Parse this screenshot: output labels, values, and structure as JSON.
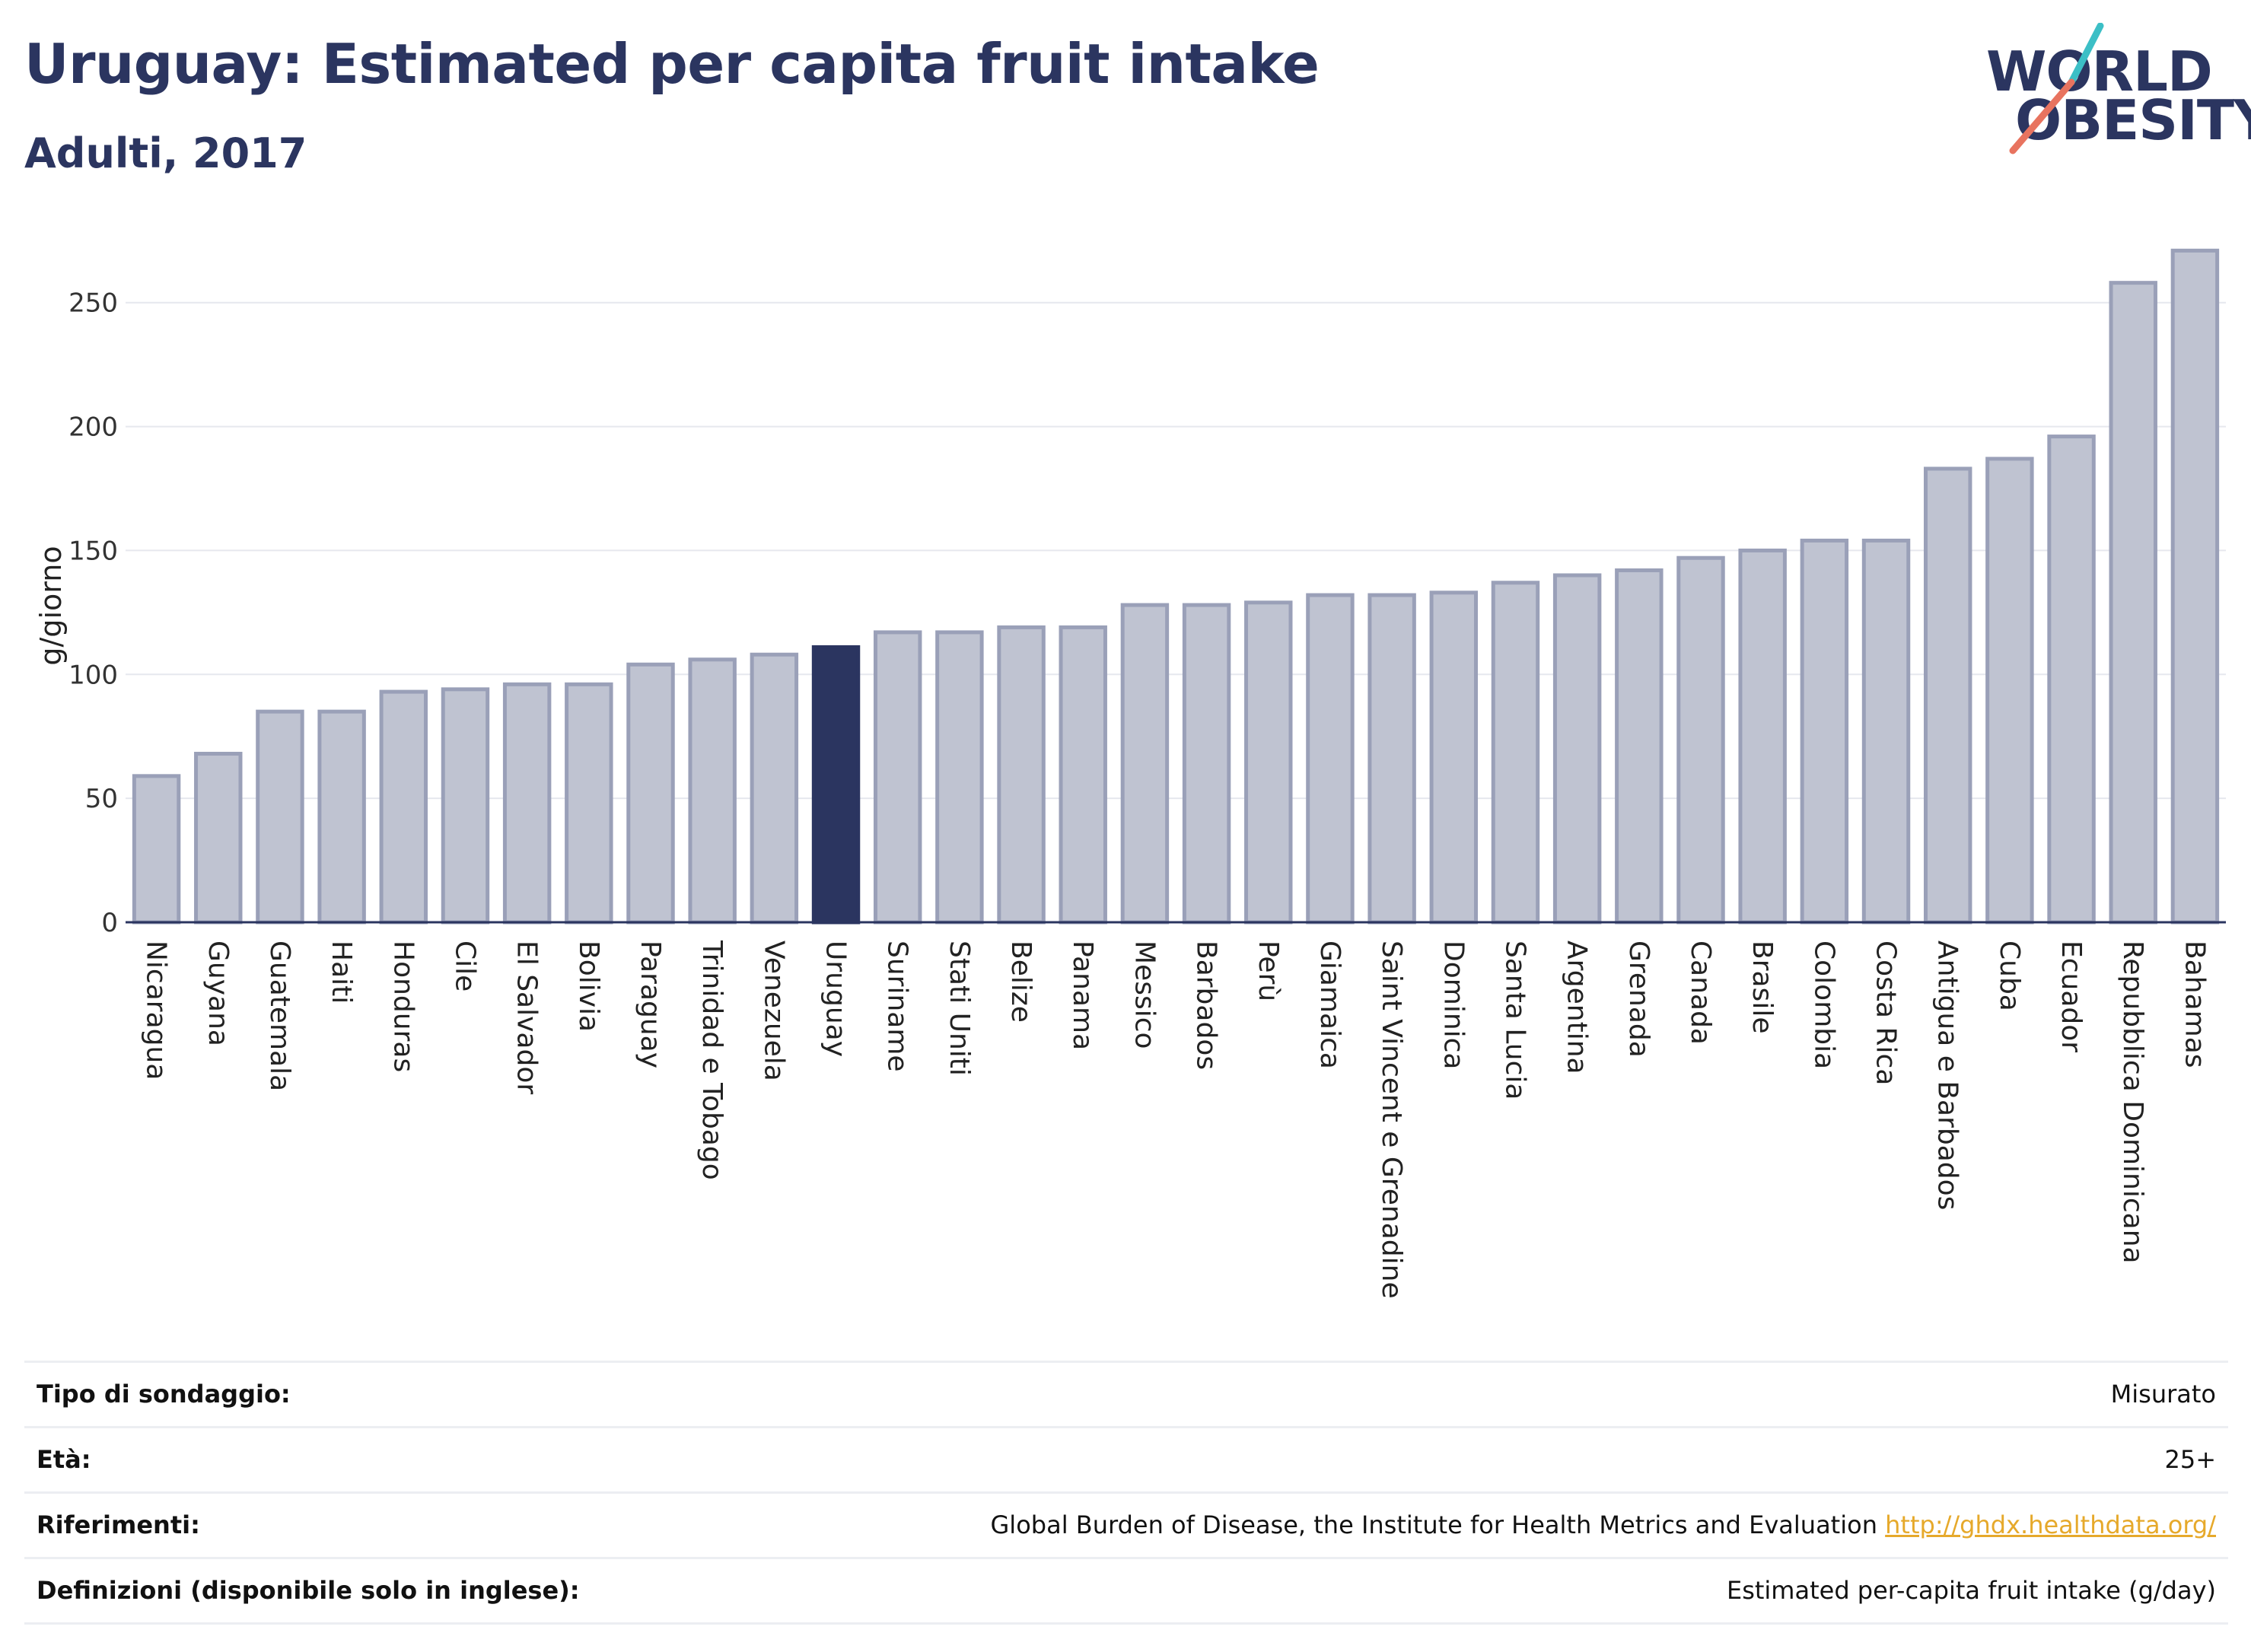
{
  "header": {
    "title": "Uruguay: Estimated per capita fruit intake",
    "subtitle": "Adulti, 2017"
  },
  "logo": {
    "line1": "WORLD",
    "line2": "OBESITY",
    "accent_teal": "#3cbfc6",
    "accent_coral": "#e8735f"
  },
  "colors": {
    "bar_default_fill": "#bfc3d1",
    "bar_default_stroke": "#9aa0b8",
    "bar_highlight": "#2b3560",
    "axis": "#2b3560",
    "grid": "#e6e8ee",
    "text": "#2b3560"
  },
  "chart_data": {
    "type": "bar",
    "ylabel": "g/giorno",
    "ylim": [
      0,
      280
    ],
    "yticks": [
      0,
      50,
      100,
      150,
      200,
      250
    ],
    "highlight": "Uruguay",
    "grid": true,
    "categories": [
      "Nicaragua",
      "Guyana",
      "Guatemala",
      "Haiti",
      "Honduras",
      "Cile",
      "El Salvador",
      "Bolivia",
      "Paraguay",
      "Trinidad e Tobago",
      "Venezuela",
      "Uruguay",
      "Suriname",
      "Stati Uniti",
      "Belize",
      "Panama",
      "Messico",
      "Barbados",
      "Perù",
      "Giamaica",
      "Saint Vincent e Grenadine",
      "Dominica",
      "Santa Lucia",
      "Argentina",
      "Grenada",
      "Canada",
      "Brasile",
      "Colombia",
      "Costa Rica",
      "Antigua e Barbados",
      "Cuba",
      "Ecuador",
      "Repubblica Dominicana",
      "Bahamas"
    ],
    "values": [
      59,
      68,
      85,
      85,
      93,
      94,
      96,
      96,
      104,
      106,
      108,
      111,
      117,
      117,
      119,
      119,
      128,
      128,
      129,
      132,
      132,
      133,
      137,
      140,
      142,
      147,
      150,
      154,
      154,
      183,
      187,
      196,
      258,
      271
    ]
  },
  "meta": [
    {
      "label": "Tipo di sondaggio:",
      "value": "Misurato"
    },
    {
      "label": "Età:",
      "value": "25+"
    },
    {
      "label": "Riferimenti:",
      "value": "Global Burden of Disease, the Institute for Health Metrics and Evaluation",
      "link": "http://ghdx.healthdata.org/"
    },
    {
      "label": "Definizioni (disponibile solo in inglese):",
      "value": "Estimated per-capita fruit intake (g/day)"
    }
  ]
}
